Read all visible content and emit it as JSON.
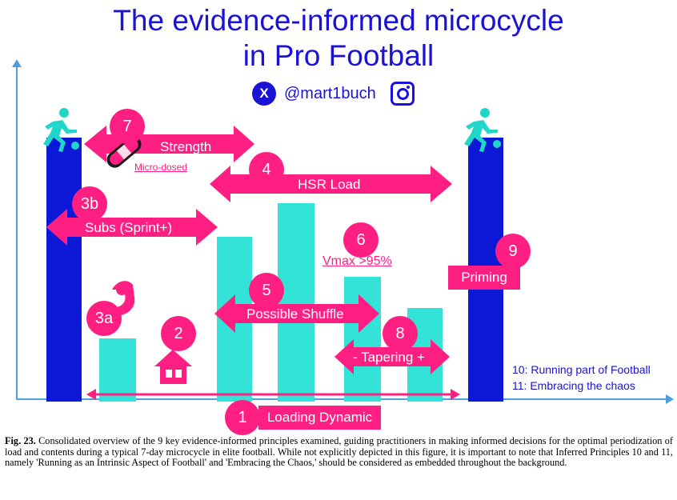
{
  "title": {
    "line1": "The evidence-informed microcycle",
    "line2": "in Pro Football"
  },
  "social": {
    "handle": "@mart1buch",
    "x_icon": "x-logo",
    "instagram_icon": "instagram-logo"
  },
  "colors": {
    "blue": "#0b18d6",
    "teal": "#33e3d7",
    "pink": "#ff1f83",
    "title": "#1a12d6",
    "axis": "#4f9fe0"
  },
  "principles": {
    "p1": {
      "number": "1",
      "label": "Loading Dynamic"
    },
    "p2": {
      "number": "2",
      "icon": "house-icon"
    },
    "p3a": {
      "number": "3a",
      "icon": "flexed-arm-icon"
    },
    "p3b": {
      "number": "3b",
      "label": "Subs (Sprint+)"
    },
    "p4": {
      "number": "4",
      "label": "HSR Load"
    },
    "p5": {
      "number": "5",
      "label": "Possible Shuffle"
    },
    "p6": {
      "number": "6",
      "label": "Vmax >95%"
    },
    "p7": {
      "number": "7",
      "label": "Strength",
      "sublabel": "Micro-dosed",
      "icon": "bandage-icon"
    },
    "p8": {
      "number": "8",
      "label": "- Tapering +"
    },
    "p9": {
      "number": "9",
      "label": "Priming"
    }
  },
  "notes": {
    "n10": "10: Running part of Football",
    "n11": "11: Embracing the chaos"
  },
  "caption": {
    "fig": "Fig. 23.",
    "text": "Consolidated overview of the 9 key evidence-informed principles examined, guiding practitioners in making informed decisions for the optimal periodization of load and contents during a typical 7-day microcycle in elite football. While not explicitly depicted in this figure, it is important to note that Inferred Principles 10 and 11, namely 'Running as an Intrinsic Aspect of Football' and 'Embracing the Chaos,' should be considered as embedded throughout the background."
  }
}
